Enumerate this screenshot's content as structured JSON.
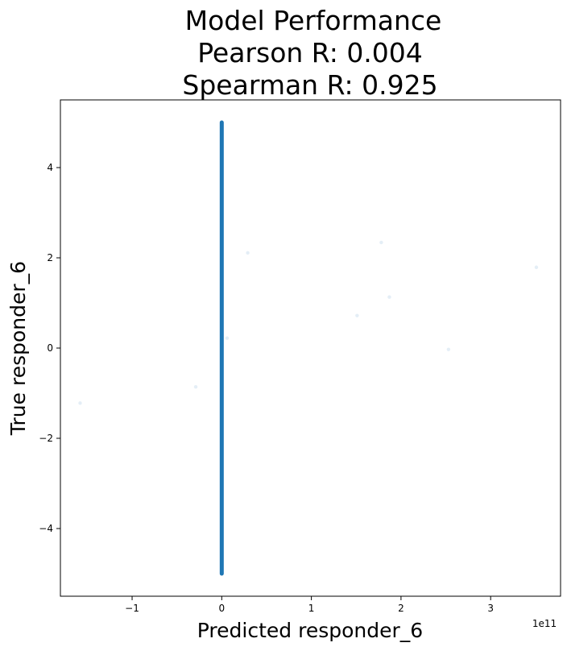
{
  "chart_data": {
    "type": "scatter",
    "title_lines": [
      "Model Performance",
      "Pearson R: 0.004",
      "Spearman R: 0.925"
    ],
    "xlabel": "Predicted responder_6",
    "ylabel": "True responder_6",
    "x_offset_text": "1e11",
    "x_scale": 100000000000,
    "xlim": [
      -180000000000.0,
      378000000000.0
    ],
    "ylim": [
      -5.5,
      5.5
    ],
    "x_ticks": [
      -100000000000.0,
      0,
      100000000000.0,
      200000000000.0,
      300000000000.0
    ],
    "x_tick_labels": [
      "−1",
      "0",
      "1",
      "2",
      "3"
    ],
    "y_ticks": [
      -4,
      -2,
      0,
      2,
      4
    ],
    "y_tick_labels": [
      "−4",
      "−2",
      "0",
      "2",
      "4"
    ],
    "grid": false,
    "legend": false,
    "color": "#1f77b4",
    "dense_band": {
      "x": 0,
      "y_min": -5.0,
      "y_max": 5.0
    },
    "outliers": [
      {
        "x": -158000000000.0,
        "y": -1.22
      },
      {
        "x": -29000000000.0,
        "y": -0.86
      },
      {
        "x": 6000000000.0,
        "y": 0.22
      },
      {
        "x": 29000000000.0,
        "y": 2.11
      },
      {
        "x": 151000000000.0,
        "y": 0.72
      },
      {
        "x": 178000000000.0,
        "y": 2.34
      },
      {
        "x": 187000000000.0,
        "y": 1.13
      },
      {
        "x": 253000000000.0,
        "y": -0.03
      },
      {
        "x": 351000000000.0,
        "y": 1.79
      }
    ]
  }
}
